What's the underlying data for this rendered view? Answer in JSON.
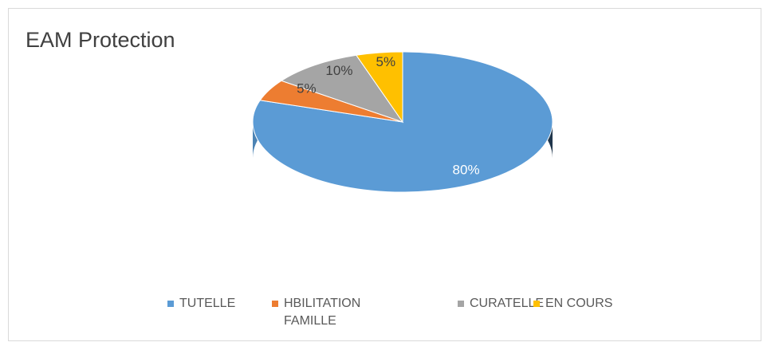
{
  "title": "EAM Protection",
  "chart_data": {
    "type": "pie",
    "categories": [
      "TUTELLE",
      "HBILITATION FAMILLE",
      "CURATELLE",
      "EN COURS"
    ],
    "values": [
      80,
      5,
      10,
      5
    ],
    "value_labels": [
      "80%",
      "5%",
      "10%",
      "5%"
    ],
    "colors": [
      "#5b9bd5",
      "#ed7d31",
      "#a5a5a5",
      "#ffc000"
    ],
    "legend": "bottom"
  }
}
